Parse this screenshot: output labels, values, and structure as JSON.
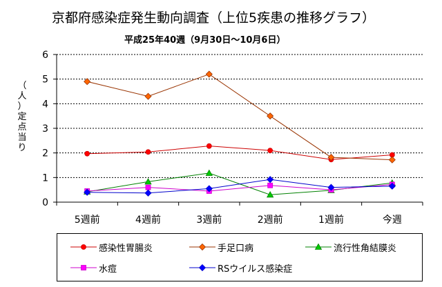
{
  "chart_data": {
    "type": "line",
    "title": "京都府感染症発生動向調査（上位5疾患の推移グラフ）",
    "subtitle": "平成25年40週（9月30日〜10月6日）",
    "ylabel": "（人）定点当り",
    "xlabel": "",
    "categories": [
      "5週前",
      "4週前",
      "3週前",
      "2週前",
      "1週前",
      "今週"
    ],
    "ylim": [
      0,
      6
    ],
    "yticks": [
      0,
      1,
      2,
      3,
      4,
      5,
      6
    ],
    "grid": true,
    "legend_position": "bottom",
    "series": [
      {
        "name": "感染性胃腸炎",
        "values": [
          1.97,
          2.04,
          2.28,
          2.1,
          1.73,
          1.92
        ],
        "color": "#ff0000",
        "line_color": "#cc0000",
        "marker": "circle"
      },
      {
        "name": "手足口病",
        "values": [
          4.9,
          4.3,
          5.2,
          3.5,
          1.82,
          1.72
        ],
        "color": "#ff6600",
        "line_color": "#993300",
        "marker": "diamond"
      },
      {
        "name": "流行性角結膜炎",
        "values": [
          0.42,
          0.83,
          1.18,
          0.3,
          0.48,
          0.78
        ],
        "color": "#00cc00",
        "line_color": "#008000",
        "marker": "triangle"
      },
      {
        "name": "水痘",
        "values": [
          0.45,
          0.6,
          0.45,
          0.68,
          0.5,
          0.72
        ],
        "color": "#ff00ff",
        "line_color": "#cc00cc",
        "marker": "square"
      },
      {
        "name": "RSウイルス感染症",
        "values": [
          0.4,
          0.37,
          0.55,
          0.92,
          0.6,
          0.65
        ],
        "color": "#0000ff",
        "line_color": "#0000cc",
        "marker": "diamond"
      }
    ]
  }
}
